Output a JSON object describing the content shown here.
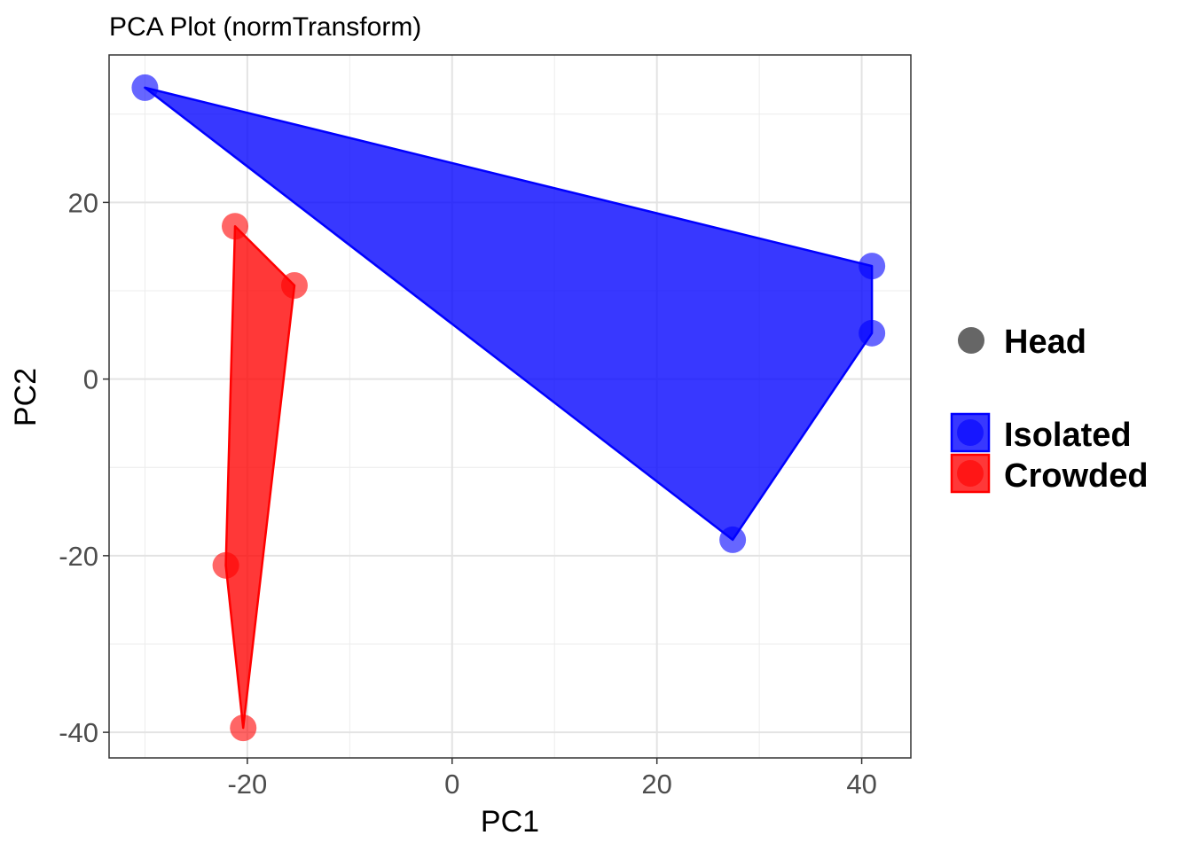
{
  "chart_data": {
    "type": "scatter",
    "title": "PCA Plot (normTransform)",
    "xlabel": "PC1",
    "ylabel": "PC2",
    "xlim": [
      -33.5,
      44.8
    ],
    "ylim": [
      -42.9,
      36.7
    ],
    "x_ticks": [
      -20,
      0,
      20,
      40
    ],
    "y_ticks": [
      -40,
      -20,
      0,
      20
    ],
    "x_tick_labels": [
      "-20",
      "0",
      "20",
      "40"
    ],
    "y_tick_labels": [
      "-40",
      "-20",
      "0",
      "20"
    ],
    "grid": true,
    "legend_position": "right",
    "shape_legend": {
      "label": "Head",
      "color": "#666666"
    },
    "series": [
      {
        "name": "Isolated",
        "color": "#0000ff",
        "points": [
          {
            "x": -30,
            "y": 33
          },
          {
            "x": 41,
            "y": 12.8
          },
          {
            "x": 41,
            "y": 5.2
          },
          {
            "x": 27.4,
            "y": -18.2
          }
        ],
        "hull_order": [
          0,
          1,
          2,
          3
        ]
      },
      {
        "name": "Crowded",
        "color": "#ff0000",
        "points": [
          {
            "x": -21.2,
            "y": 17.3
          },
          {
            "x": -15.4,
            "y": 10.6
          },
          {
            "x": -22.1,
            "y": -21.1
          },
          {
            "x": -20.4,
            "y": -39.5
          }
        ],
        "hull_order": [
          0,
          1,
          3,
          2
        ]
      }
    ]
  }
}
